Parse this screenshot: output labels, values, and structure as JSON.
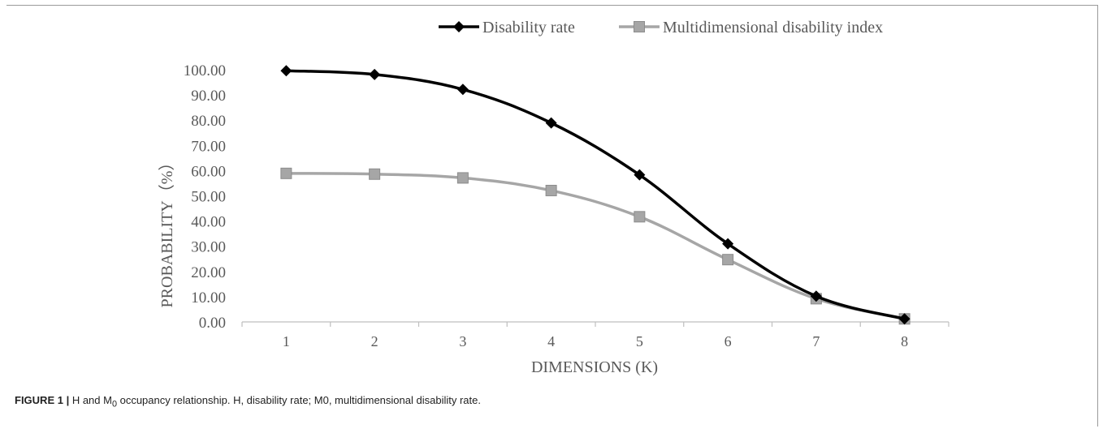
{
  "chart_data": {
    "type": "line",
    "x": [
      1,
      2,
      3,
      4,
      5,
      6,
      7,
      8
    ],
    "series": [
      {
        "name": "Disability rate",
        "values": [
          99.6,
          98.1,
          92.2,
          78.9,
          58.3,
          31.0,
          10.2,
          1.2
        ],
        "color": "#000000",
        "marker": "diamond"
      },
      {
        "name": "Multidimensional disability index",
        "values": [
          58.9,
          58.6,
          57.1,
          52.1,
          41.7,
          24.7,
          9.2,
          1.2
        ],
        "color": "#a6a6a6",
        "marker": "square"
      }
    ],
    "xlabel": "DIMENSIONS (K)",
    "ylabel": "PROBABILITY（%）",
    "ylim": [
      0,
      100
    ],
    "yticks": [
      "0.00",
      "10.00",
      "20.00",
      "30.00",
      "40.00",
      "50.00",
      "60.00",
      "70.00",
      "80.00",
      "90.00",
      "100.00"
    ],
    "xticks": [
      "1",
      "2",
      "3",
      "4",
      "5",
      "6",
      "7",
      "8"
    ],
    "grid": false,
    "legend": "top-center"
  },
  "caption": {
    "label": "FIGURE 1 |",
    "text_a": " H and M",
    "subscript": "0",
    "text_b": " occupancy relationship. H, disability rate; M0, multidimensional disability rate."
  }
}
